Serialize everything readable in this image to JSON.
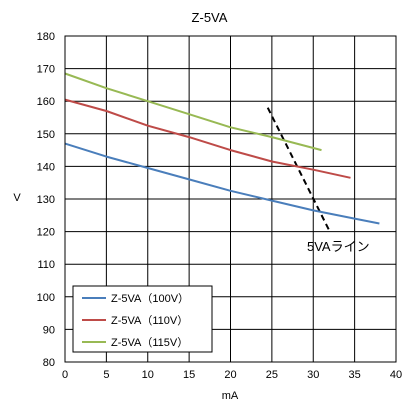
{
  "chart_data": {
    "type": "line",
    "title": "Z-5VA",
    "xlabel": "mA",
    "ylabel": "V",
    "xlim": [
      0,
      40
    ],
    "ylim": [
      80,
      180
    ],
    "xticks": [
      0,
      5,
      10,
      15,
      20,
      25,
      30,
      35,
      40
    ],
    "yticks": [
      80,
      90,
      100,
      110,
      120,
      130,
      140,
      150,
      160,
      170,
      180
    ],
    "grid": true,
    "legend_position": "bottom-left",
    "series": [
      {
        "name": "Z-5VA（100V）",
        "color": "#4a7ebb",
        "x": [
          0,
          5,
          10,
          15,
          20,
          25,
          30,
          35,
          38
        ],
        "y": [
          147,
          143,
          139.5,
          136,
          132.5,
          129.5,
          126.5,
          124,
          122.5
        ]
      },
      {
        "name": "Z-5VA（110V）",
        "color": "#be4b48",
        "x": [
          0,
          5,
          10,
          15,
          20,
          25,
          30,
          34.5
        ],
        "y": [
          160.5,
          157,
          152.5,
          149,
          145,
          141.5,
          139,
          136.5
        ]
      },
      {
        "name": "Z-5VA（115V）",
        "color": "#98b954",
        "x": [
          0,
          5,
          10,
          15,
          20,
          25,
          31
        ],
        "y": [
          168.5,
          164,
          160,
          156,
          152,
          149,
          145
        ]
      }
    ],
    "reference_line": {
      "label": "5VAライン",
      "color": "#000000",
      "style": "dashed",
      "x": [
        24.5,
        32
      ],
      "y": [
        158,
        120
      ]
    }
  }
}
